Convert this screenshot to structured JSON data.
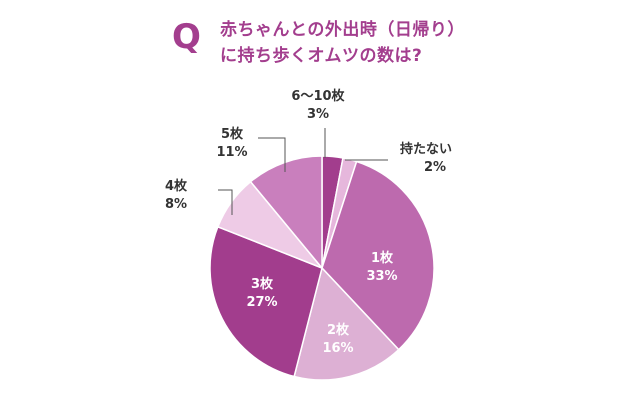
{
  "title": {
    "q": "Q",
    "line1": "赤ちゃんとの外出時（日帰り）",
    "line2": "に持ち歩くオムツの数は?"
  },
  "chart_data": {
    "type": "pie",
    "title": "赤ちゃんとの外出時（日帰り）に持ち歩くオムツの数は?",
    "start": "12 o'clock, clockwise",
    "slices": [
      {
        "label": "6〜10枚",
        "value": 3,
        "value_label": "3%",
        "color": "#a23d8d"
      },
      {
        "label": "持たない",
        "value": 2,
        "value_label": "2%",
        "color": "#e6b7dc"
      },
      {
        "label": "1枚",
        "value": 33,
        "value_label": "33%",
        "color": "#bd6aae"
      },
      {
        "label": "2枚",
        "value": 16,
        "value_label": "16%",
        "color": "#ddb0d4"
      },
      {
        "label": "3枚",
        "value": 27,
        "value_label": "27%",
        "color": "#a23d8d"
      },
      {
        "label": "4枚",
        "value": 8,
        "value_label": "8%",
        "color": "#eecbe6"
      },
      {
        "label": "5枚",
        "value": 11,
        "value_label": "11%",
        "color": "#c97fbd"
      }
    ]
  }
}
